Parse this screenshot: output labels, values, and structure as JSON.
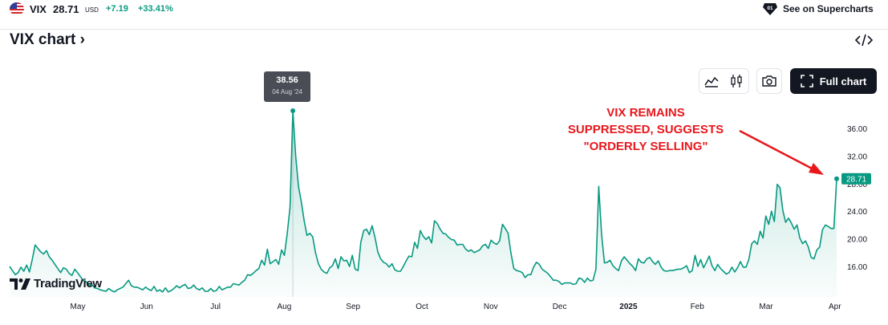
{
  "header": {
    "symbol": "VIX",
    "price": "28.71",
    "currency": "USD",
    "change": "+7.19",
    "change_pct": "+33.41%",
    "supercharts_label": "See on Supercharts"
  },
  "chart_title": "VIX chart ›",
  "toolbar": {
    "full_chart_label": "Full chart"
  },
  "tooltip": {
    "value": "38.56",
    "date": "04 Aug '24"
  },
  "annotation": {
    "lines": [
      "VIX REMAINS",
      "SUPPRESSED, SUGGESTS",
      "\"ORDERLY SELLING\""
    ],
    "color": "#e8171c"
  },
  "branding": {
    "logo_text": "TradingView"
  },
  "colors": {
    "line": "#089981",
    "positive": "#089981",
    "dark": "#131722"
  },
  "chart_data": {
    "type": "area",
    "title": "",
    "xlabel": "",
    "ylabel": "",
    "ylim": [
      12.4,
      38.56
    ],
    "x_tick_labels": [
      "May",
      "Jun",
      "Jul",
      "Aug",
      "Sep",
      "Oct",
      "Nov",
      "Dec",
      "2025",
      "Feb",
      "Mar",
      "Apr"
    ],
    "y_tick_labels": [
      "16.00",
      "20.00",
      "24.00",
      "28.00",
      "32.00",
      "36.00"
    ],
    "last_value_label": "28.71",
    "peak": {
      "date": "04 Aug '24",
      "value": 38.56
    },
    "series": [
      {
        "values": [
          16.0,
          15.4,
          14.8,
          15.1,
          15.9,
          15.3,
          16.2,
          15.2,
          17.0,
          19.1,
          18.6,
          18.1,
          17.8,
          18.3,
          17.4,
          16.9,
          16.3,
          15.7,
          15.1,
          15.8,
          15.6,
          15.0,
          14.7,
          15.6,
          15.1,
          14.5,
          14.0,
          13.8,
          13.2,
          13.4,
          12.9,
          12.8,
          12.6,
          12.5,
          12.4,
          12.8,
          12.5,
          12.3,
          12.6,
          12.8,
          13.0,
          13.5,
          14.0,
          13.2,
          13.0,
          13.0,
          12.8,
          12.6,
          13.0,
          12.7,
          12.5,
          13.1,
          12.4,
          12.6,
          12.3,
          12.9,
          12.3,
          12.5,
          12.8,
          13.2,
          12.9,
          13.2,
          13.4,
          12.8,
          12.9,
          13.3,
          12.8,
          12.6,
          12.9,
          12.4,
          12.4,
          12.8,
          12.4,
          12.5,
          13.1,
          12.6,
          12.8,
          13.0,
          13.0,
          13.5,
          13.4,
          13.3,
          13.7,
          14.0,
          14.8,
          14.7,
          15.0,
          15.4,
          15.7,
          16.9,
          16.2,
          18.5,
          16.4,
          16.7,
          17.0,
          16.3,
          18.4,
          17.6,
          20.7,
          24.6,
          38.56,
          32.0,
          27.6,
          25.3,
          22.6,
          20.5,
          20.8,
          20.3,
          18.0,
          16.4,
          15.6,
          15.2,
          15.0,
          15.8,
          16.1,
          17.1,
          15.7,
          17.4,
          16.8,
          16.9,
          16.0,
          17.6,
          15.6,
          15.4,
          19.5,
          21.2,
          21.4,
          20.6,
          21.9,
          20.2,
          18.1,
          17.1,
          16.6,
          16.4,
          15.9,
          16.4,
          15.5,
          15.3,
          15.3,
          16.0,
          16.8,
          17.5,
          17.4,
          19.5,
          18.6,
          21.2,
          20.4,
          19.9,
          20.3,
          19.4,
          22.6,
          22.2,
          21.4,
          20.8,
          20.7,
          20.2,
          19.9,
          19.8,
          19.1,
          19.2,
          19.2,
          18.5,
          18.2,
          18.4,
          18.0,
          18.2,
          18.4,
          19.0,
          19.2,
          18.6,
          19.8,
          19.4,
          19.2,
          19.7,
          22.1,
          21.5,
          20.8,
          17.9,
          15.7,
          15.4,
          15.3,
          15.1,
          14.4,
          14.8,
          14.8,
          15.9,
          16.6,
          16.3,
          15.6,
          15.3,
          15.0,
          14.5,
          14.0,
          14.0,
          13.8,
          13.4,
          13.6,
          13.6,
          13.6,
          13.4,
          13.5,
          14.3,
          14.2,
          13.7,
          14.3,
          13.9,
          14.0,
          15.6,
          27.6,
          20.7,
          16.5,
          16.6,
          16.9,
          16.1,
          15.7,
          15.4,
          16.8,
          17.4,
          16.9,
          16.4,
          16.0,
          15.4,
          17.1,
          16.6,
          16.5,
          17.1,
          17.3,
          16.7,
          16.3,
          16.8,
          15.9,
          15.4,
          15.3,
          15.4,
          15.4,
          15.5,
          15.6,
          15.6,
          15.8,
          16.1,
          15.1,
          15.4,
          17.6,
          16.0,
          17.0,
          15.8,
          16.6,
          17.5,
          16.1,
          15.4,
          16.3,
          15.7,
          15.3,
          14.9,
          15.1,
          15.9,
          15.2,
          15.8,
          16.7,
          15.9,
          15.9,
          17.0,
          19.3,
          19.7,
          19.2,
          21.1,
          20.1,
          23.3,
          22.1,
          24.0,
          22.5,
          27.9,
          27.4,
          24.1,
          22.4,
          23.0,
          22.3,
          21.4,
          22.0,
          20.1,
          19.3,
          19.7,
          18.8,
          17.3,
          17.1,
          18.4,
          18.8,
          21.3,
          22.0,
          21.8,
          21.5,
          21.5,
          28.71
        ]
      }
    ]
  }
}
